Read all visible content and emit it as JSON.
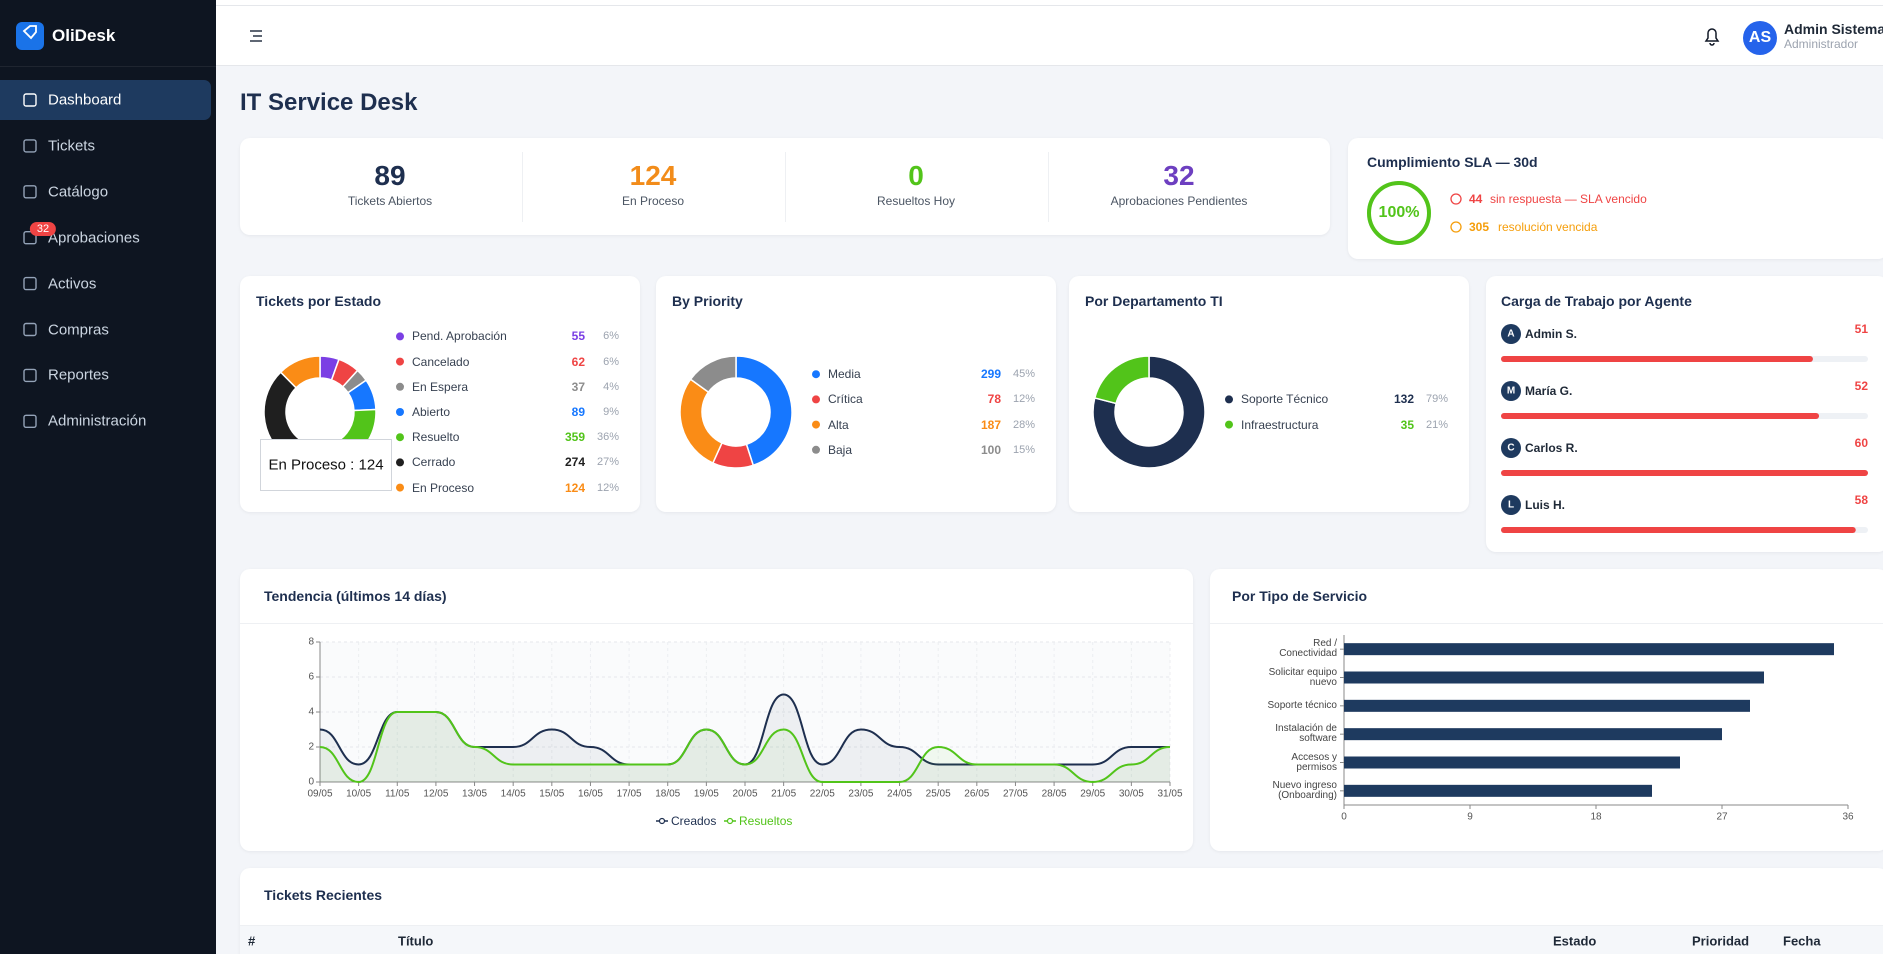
{
  "sidebar": {
    "brand": "OliDesk",
    "menu": [
      {
        "label": "Dashboard"
      },
      {
        "label": "Tickets"
      },
      {
        "label": "Catálogo"
      },
      {
        "label": "Aprobaciones",
        "badge": "32"
      },
      {
        "label": "Activos"
      },
      {
        "label": "Compras"
      },
      {
        "label": "Reportes"
      },
      {
        "label": "Administración"
      }
    ]
  },
  "topbar": {
    "initials": "AS",
    "name": "Admin Sistema",
    "role": "Administrador"
  },
  "page_title": "IT Service Desk",
  "kpis": [
    {
      "value": 89,
      "label": "Tickets Abiertos",
      "color": "#1e2f4f"
    },
    {
      "value": 124,
      "label": "En Proceso",
      "color": "#f28c1a"
    },
    {
      "value": 0,
      "label": "Resueltos Hoy",
      "color": "#52c41a"
    },
    {
      "value": 32,
      "label": "Aprobaciones Pendientes",
      "color": "#6d3fc0"
    }
  ],
  "sla": {
    "title": "Cumplimiento SLA — 30d",
    "value": 100,
    "value_label": "100%",
    "color": "#52c41a",
    "alerts": [
      {
        "count": 44,
        "text": "sin respuesta — SLA vencido",
        "color": "#ef4444"
      },
      {
        "count": 305,
        "text": "resolución vencida",
        "color": "#f59e0b"
      }
    ]
  },
  "chart_data": [
    {
      "type": "donut",
      "title": "Tickets por Estado",
      "categories": [
        "Pend. Aprobación",
        "Cancelado",
        "En Espera",
        "Abierto",
        "Resuelto",
        "Cerrado",
        "En Proceso"
      ],
      "values": [
        55,
        62,
        37,
        89,
        359,
        274,
        124
      ],
      "shares": [
        "6%",
        "6%",
        "4%",
        "9%",
        "36%",
        "27%",
        "12%"
      ],
      "colors": [
        "#7b3fe4",
        "#ef4444",
        "#8c8c8c",
        "#1677ff",
        "#52c41a",
        "#1f1f1f",
        "#fa8c16"
      ],
      "tooltip": "En Proceso : 124"
    },
    {
      "type": "donut",
      "title": "By Priority",
      "categories": [
        "Media",
        "Crítica",
        "Alta",
        "Baja"
      ],
      "values": [
        299,
        78,
        187,
        100
      ],
      "shares": [
        "45%",
        "12%",
        "28%",
        "15%"
      ],
      "colors": [
        "#1677ff",
        "#ef4444",
        "#fa8c16",
        "#8c8c8c"
      ]
    },
    {
      "type": "donut",
      "title": "Por Departamento TI",
      "categories": [
        "Soporte Técnico",
        "Infraestructura"
      ],
      "values": [
        132,
        35
      ],
      "shares": [
        "79%",
        "21%"
      ],
      "colors": [
        "#1e2f4f",
        "#52c41a"
      ]
    },
    {
      "type": "line",
      "title": "Tendencia (últimos 14 días)",
      "x": [
        "09/05",
        "10/05",
        "11/05",
        "12/05",
        "13/05",
        "14/05",
        "15/05",
        "16/05",
        "17/05",
        "18/05",
        "19/05",
        "20/05",
        "21/05",
        "22/05",
        "23/05",
        "24/05",
        "25/05",
        "26/05",
        "27/05",
        "28/05",
        "29/05",
        "30/05",
        "31/05"
      ],
      "series": [
        {
          "name": "Creados",
          "color": "#1e2f4f",
          "values": [
            3,
            1,
            4,
            4,
            2,
            2,
            3,
            2,
            1,
            1,
            3,
            1,
            5,
            1,
            3,
            2,
            1,
            1,
            1,
            1,
            1,
            2,
            2
          ]
        },
        {
          "name": "Resueltos",
          "color": "#52c41a",
          "values": [
            2,
            0,
            4,
            4,
            2,
            1,
            1,
            1,
            1,
            1,
            3,
            1,
            3,
            0,
            0,
            0,
            2,
            1,
            1,
            1,
            0,
            1,
            2
          ]
        }
      ],
      "ylim": [
        0,
        8
      ],
      "yticks": [
        0,
        2,
        4,
        6,
        8
      ],
      "grid": true,
      "legend": "bottom"
    },
    {
      "type": "hbar",
      "title": "Por Tipo de Servicio",
      "categories": [
        "Red / Conectividad",
        "Solicitar equipo nuevo",
        "Soporte técnico",
        "Instalación de software",
        "Accesos y permisos",
        "Nuevo ingreso (Onboarding)"
      ],
      "values": [
        35,
        30,
        29,
        27,
        24,
        22
      ],
      "color": "#1e3a5f",
      "xlim": [
        0,
        36
      ],
      "xticks": [
        0,
        9,
        18,
        27,
        36
      ]
    }
  ],
  "workload": {
    "title": "Carga de Trabajo por Agente",
    "color": "#ef4444",
    "agents": [
      {
        "initial": "A",
        "name": "Admin S.",
        "value": 51
      },
      {
        "initial": "M",
        "name": "María G.",
        "value": 52
      },
      {
        "initial": "C",
        "name": "Carlos R.",
        "value": 60
      },
      {
        "initial": "L",
        "name": "Luis H.",
        "value": 58
      }
    ]
  },
  "recent": {
    "title": "Tickets Recientes",
    "columns": [
      "#",
      "Título",
      "Estado",
      "Prioridad",
      "Fecha"
    ]
  }
}
